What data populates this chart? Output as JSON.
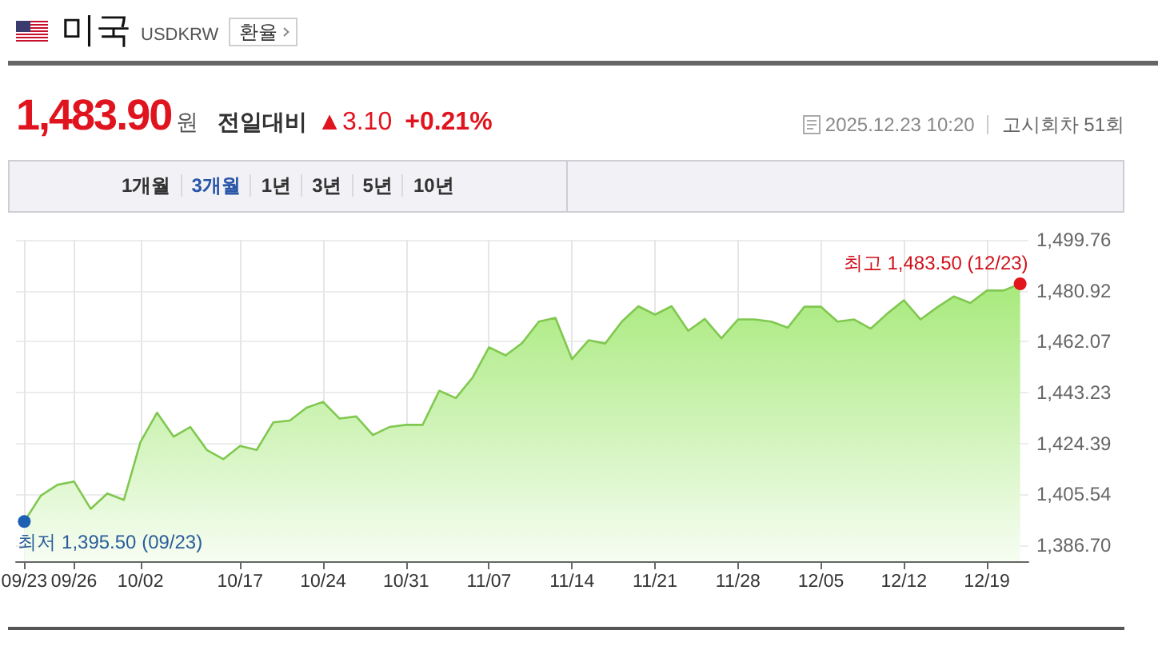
{
  "chart_data": {
    "type": "area",
    "title": "미국",
    "subtitle": "USDKRW",
    "annotations": [
      "최고 1,483.50 (12/23)",
      "환율",
      "1,483.90",
      "원",
      "전일대비",
      "▲3.10",
      "+0.21%",
      "2025.12.23 10:20",
      "고시회차 51회",
      "1개월",
      "3개월",
      "1년",
      "3년",
      "5년",
      "10년",
      {
        "text": "최저 1,395.50 (09/23)",
        "x": "09/23",
        "y": 1395.5
      }
    ],
    "categories": [
      "09/23",
      null,
      null,
      "09/26",
      null,
      null,
      null,
      "10/02",
      null,
      null,
      null,
      null,
      null,
      "10/17",
      null,
      null,
      null,
      null,
      "10/24",
      null,
      null,
      null,
      null,
      "10/31",
      null,
      null,
      null,
      null,
      "11/07",
      null,
      null,
      null,
      null,
      "11/14",
      null,
      null,
      null,
      null,
      "11/21",
      null,
      null,
      null,
      null,
      "11/28",
      null,
      null,
      null,
      null,
      "12/05",
      null,
      null,
      null,
      null,
      "12/12",
      null,
      null,
      null,
      null,
      "12/19",
      null,
      null
    ],
    "values": [
      1395.5,
      1405.1,
      1409.1,
      1410.3,
      1400.2,
      1405.9,
      1403.5,
      1424.9,
      1435.8,
      1426.9,
      1430.5,
      1422.0,
      1418.6,
      1423.5,
      1422.0,
      1432.2,
      1432.9,
      1437.6,
      1439.8,
      1433.6,
      1434.4,
      1427.5,
      1430.5,
      1431.3,
      1431.3,
      1443.9,
      1441.2,
      1448.7,
      1460.0,
      1457.0,
      1461.6,
      1469.5,
      1470.9,
      1455.6,
      1462.6,
      1461.4,
      1469.5,
      1475.2,
      1472.1,
      1475.2,
      1466.1,
      1470.5,
      1463.3,
      1470.3,
      1470.3,
      1469.5,
      1467.3,
      1475.0,
      1475.0,
      1469.5,
      1470.3,
      1466.9,
      1472.5,
      1477.4,
      1470.3,
      1474.8,
      1478.8,
      1476.4,
      1481.0,
      1481.0,
      1483.5
    ],
    "color": "#80c850",
    "ylim": [
      1380.8,
      1499.76
    ],
    "yticks": [
      {
        "value": 1386.7,
        "label": "1,386.70"
      },
      {
        "value": 1405.54,
        "label": "1,405.54"
      },
      {
        "value": 1424.39,
        "label": "1,424.39"
      },
      {
        "value": 1443.23,
        "label": "1,443.23"
      },
      {
        "value": 1462.07,
        "label": "1,462.07"
      },
      {
        "value": 1480.92,
        "label": "1,480.92"
      },
      {
        "value": 1499.76,
        "label": "1,499.76"
      }
    ],
    "grid": true,
    "marker": "none"
  }
}
